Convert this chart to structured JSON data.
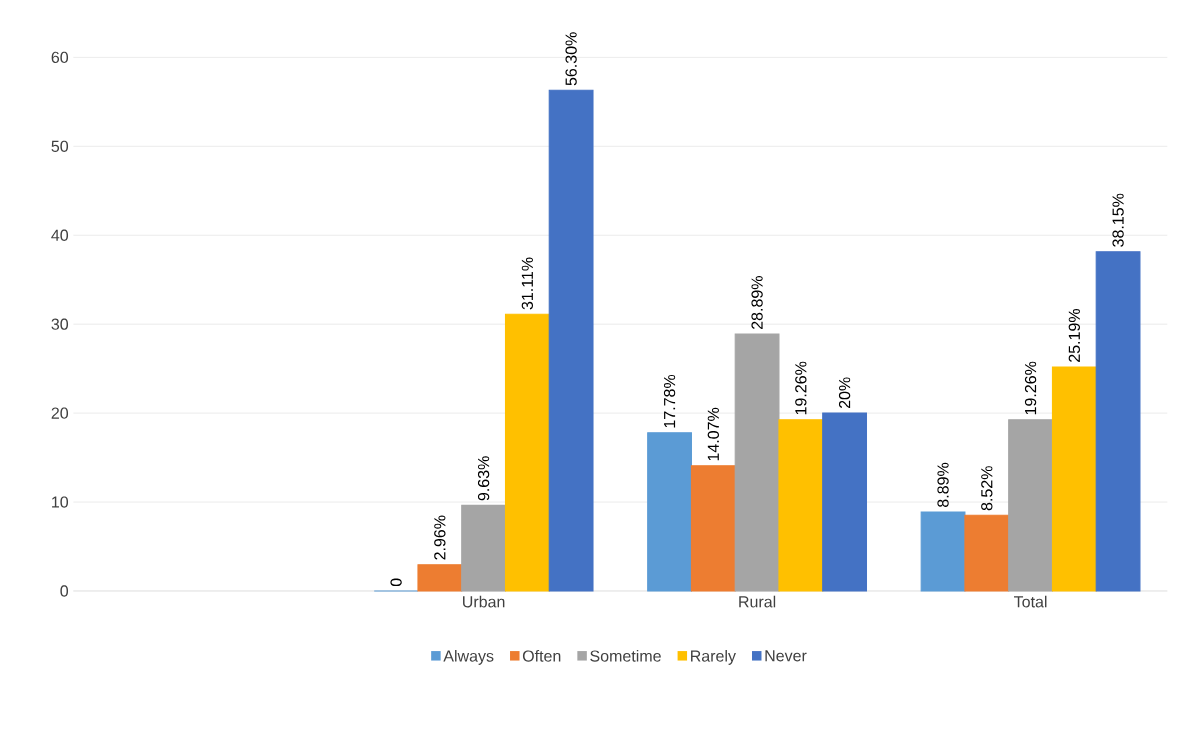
{
  "chart_data": {
    "type": "bar",
    "categories": [
      null,
      "Urban",
      "Rural",
      "Total"
    ],
    "series": [
      {
        "name": "Always",
        "color": "#5b9bd5",
        "values": [
          null,
          0,
          17.78,
          8.89
        ],
        "value_labels": [
          null,
          "0",
          "17.78%",
          "8.89%"
        ]
      },
      {
        "name": "Often",
        "color": "#ed7d31",
        "values": [
          null,
          2.96,
          14.07,
          8.52
        ],
        "value_labels": [
          null,
          "2.96%",
          "14.07%",
          "8.52%"
        ]
      },
      {
        "name": "Sometime",
        "color": "#a5a5a5",
        "values": [
          null,
          9.63,
          28.89,
          19.26
        ],
        "value_labels": [
          null,
          "9.63%",
          "28.89%",
          "19.26%"
        ]
      },
      {
        "name": "Rarely",
        "color": "#ffc000",
        "values": [
          null,
          31.11,
          19.26,
          25.19
        ],
        "value_labels": [
          null,
          "31.11%",
          "19.26%",
          "25.19%"
        ]
      },
      {
        "name": "Never",
        "color": "#4472c4",
        "values": [
          null,
          56.3,
          20,
          38.15
        ],
        "value_labels": [
          null,
          "56.30%",
          "20%",
          "38.15%"
        ]
      }
    ],
    "ylim": [
      0,
      60
    ],
    "yticks": [
      0,
      10,
      20,
      30,
      40,
      50,
      60
    ],
    "grid": "y",
    "legend": "bottom"
  }
}
